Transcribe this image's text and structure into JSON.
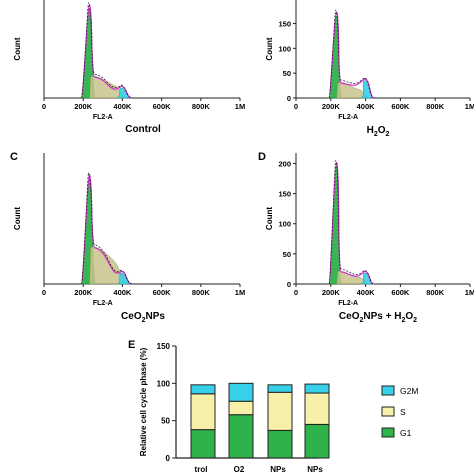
{
  "panels": {
    "A": {
      "letter": "",
      "caption": "Control"
    },
    "B": {
      "letter": "",
      "caption": "H2O2"
    },
    "C": {
      "letter": "C",
      "caption": "CeO2NPs"
    },
    "D": {
      "letter": "D",
      "caption": "CeO2NPs + H2O2"
    },
    "E": {
      "letter": "E"
    }
  },
  "captions": {
    "control": "Control",
    "h2o2_main": "H",
    "h2o2_sub1": "2",
    "h2o2_o": "O",
    "h2o2_sub2": "2",
    "ceo2_main": "CeO",
    "ceo2_sub": "2",
    "ceo2_tail": "NPs",
    "ceo2h_main": "CeO",
    "ceo2h_sub": "2",
    "ceo2h_mid": "NPs + H",
    "ceo2h_sub2": "2",
    "ceo2h_o": "O",
    "ceo2h_sub3": "2"
  },
  "histogram_axes": {
    "ylabel": "Count",
    "xlabel": "FL2-A",
    "xticks": [
      "0",
      "200K",
      "400K",
      "600K",
      "800K",
      "1M"
    ],
    "yticks_b": [
      "150",
      "100",
      "50",
      "0"
    ],
    "yticks_d": [
      "200",
      "150",
      "100",
      "50",
      "0"
    ]
  },
  "colors": {
    "g1": "#2db34a",
    "s": "#f6f0a8",
    "g2m": "#38d0e8",
    "envelope": "#cc33cc",
    "fill_olive": "#c8c48a"
  },
  "chart_data": [
    {
      "type": "area",
      "panel": "A",
      "title": "Control",
      "xlabel": "FL2-A",
      "ylabel": "Count",
      "x": [
        0,
        200000,
        240000,
        300000,
        400000,
        440000,
        600000,
        1000000
      ],
      "series": [
        {
          "values": [
            0,
            0,
            190,
            42,
            20,
            0,
            0,
            0
          ]
        }
      ]
    },
    {
      "type": "area",
      "panel": "B",
      "title": "H2O2",
      "xlabel": "FL2-A",
      "ylabel": "Count",
      "yticks": [
        0,
        50,
        100,
        150
      ],
      "x": [
        0,
        200000,
        240000,
        300000,
        400000,
        440000,
        600000,
        1000000
      ],
      "series": [
        {
          "values": [
            0,
            0,
            165,
            30,
            35,
            0,
            0,
            0
          ]
        }
      ]
    },
    {
      "type": "area",
      "panel": "C",
      "title": "CeO2NPs",
      "xlabel": "FL2-A",
      "ylabel": "Count",
      "x": [
        0,
        200000,
        240000,
        300000,
        400000,
        440000,
        600000,
        1000000
      ],
      "series": [
        {
          "values": [
            0,
            0,
            175,
            60,
            18,
            0,
            0,
            0
          ]
        }
      ]
    },
    {
      "type": "area",
      "panel": "D",
      "title": "CeO2NPs + H2O2",
      "xlabel": "FL2-A",
      "ylabel": "Count",
      "yticks": [
        0,
        50,
        100,
        150,
        200
      ],
      "x": [
        0,
        200000,
        240000,
        300000,
        400000,
        440000,
        600000,
        1000000
      ],
      "series": [
        {
          "values": [
            0,
            0,
            195,
            20,
            18,
            0,
            0,
            0
          ]
        }
      ]
    },
    {
      "type": "bar",
      "panel": "E",
      "stacked": true,
      "ylabel": "Relative cell cycle phase (%)",
      "ylim": [
        0,
        150
      ],
      "yticks": [
        0,
        50,
        100,
        150
      ],
      "categories": [
        "trol",
        "O2",
        "NPs",
        "NPs"
      ],
      "series": [
        {
          "name": "G1",
          "values": [
            38,
            58,
            37,
            45
          ]
        },
        {
          "name": "S",
          "values": [
            48,
            18,
            51,
            42
          ]
        },
        {
          "name": "G2M",
          "values": [
            12,
            24,
            10,
            12
          ]
        }
      ],
      "legend": "right",
      "legend_labels": [
        "G2M",
        "S",
        "G1"
      ]
    }
  ]
}
